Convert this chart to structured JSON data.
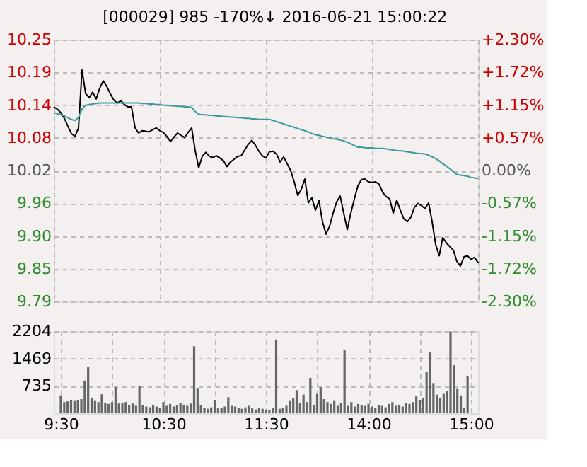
{
  "chart_data": [
    {
      "type": "line",
      "title": "[000029]   985   -170%↓   2016-06-21 15:00:22",
      "grid": true,
      "tick_labels": "y",
      "categories": [
        null,
        null,
        null,
        null,
        null,
        null,
        null,
        null,
        null,
        null,
        null,
        null,
        null,
        null,
        null,
        null,
        null,
        null,
        null,
        null,
        null,
        null,
        null,
        null,
        null,
        null,
        null,
        null,
        null,
        null,
        null,
        null,
        null,
        null,
        null,
        null,
        null,
        null,
        null,
        null,
        null,
        null,
        null,
        null,
        null,
        null,
        null,
        null,
        null,
        null,
        null,
        null,
        null,
        null,
        null,
        null,
        null,
        null,
        null,
        null,
        null,
        null,
        null,
        null,
        null,
        null,
        null,
        null,
        null,
        null,
        null,
        null,
        null,
        null,
        null,
        null,
        null,
        null,
        null,
        null,
        null,
        null,
        null,
        null,
        null,
        null,
        null,
        null,
        null,
        null,
        null,
        null,
        null,
        null,
        null,
        null,
        null,
        null,
        null,
        null,
        null,
        null,
        null,
        null,
        null,
        null,
        null,
        null,
        null,
        null,
        null,
        null,
        null,
        null,
        null,
        null,
        null,
        null,
        null,
        null,
        null
      ],
      "ylim": [
        9.7896,
        10.2504
      ],
      "yticks": [
        {
          "value": 10.2504,
          "label": "10.25"
        },
        {
          "value": 10.1928,
          "label": "10.19"
        },
        {
          "value": 10.1352,
          "label": "10.14"
        },
        {
          "value": 10.0776,
          "label": "10.08"
        },
        {
          "value": 10.02,
          "label": "10.02"
        },
        {
          "value": 9.9624,
          "label": "9.96"
        },
        {
          "value": 9.9048,
          "label": "9.90"
        },
        {
          "value": 9.8472,
          "label": "9.85"
        },
        {
          "value": 9.7896,
          "label": "9.79"
        }
      ],
      "y2lim": [
        -2.3,
        2.3
      ],
      "y2ticks": [
        {
          "value": 2.3,
          "label": "+2.30%"
        },
        {
          "value": 1.725,
          "label": "+1.72%"
        },
        {
          "value": 1.15,
          "label": "+1.15%"
        },
        {
          "value": 0.575,
          "label": "+0.57%"
        },
        {
          "value": 0,
          "label": "0.00%"
        },
        {
          "value": -0.575,
          "label": "-0.57%"
        },
        {
          "value": -1.15,
          "label": "-1.15%"
        },
        {
          "value": -1.725,
          "label": "-1.72%"
        },
        {
          "value": -2.3,
          "label": "-2.30%"
        }
      ],
      "series": [
        {
          "color": "#000000",
          "values": [
            10.132,
            10.128,
            10.122,
            10.112,
            10.098,
            10.085,
            10.08,
            10.095,
            10.197,
            10.156,
            10.148,
            10.158,
            10.146,
            10.165,
            10.178,
            10.168,
            10.155,
            10.144,
            10.139,
            10.143,
            10.136,
            10.132,
            10.132,
            10.095,
            10.086,
            10.09,
            10.089,
            10.088,
            10.092,
            10.095,
            10.09,
            10.087,
            10.08,
            10.071,
            10.079,
            10.086,
            10.082,
            10.078,
            10.087,
            10.095,
            10.055,
            10.025,
            10.045,
            10.052,
            10.045,
            10.043,
            10.046,
            10.042,
            10.037,
            10.027,
            10.035,
            10.04,
            10.045,
            10.046,
            10.056,
            10.066,
            10.073,
            10.065,
            10.054,
            10.046,
            10.042,
            10.053,
            10.054,
            10.049,
            10.035,
            10.044,
            10.032,
            10.02,
            10.0,
            9.976,
            9.987,
            10.005,
            9.963,
            9.972,
            9.95,
            9.967,
            9.93,
            9.908,
            9.922,
            9.945,
            9.965,
            9.975,
            9.945,
            9.916,
            9.945,
            9.97,
            9.993,
            10.004,
            10.005,
            10.0,
            9.999,
            10.0,
            9.996,
            9.982,
            9.974,
            9.97,
            9.945,
            9.968,
            9.95,
            9.935,
            9.93,
            9.938,
            9.955,
            9.962,
            9.958,
            9.953,
            9.963,
            9.93,
            9.89,
            9.87,
            9.902,
            9.893,
            9.886,
            9.88,
            9.86,
            9.852,
            9.868,
            9.87,
            9.864,
            9.867,
            9.858
          ]
        },
        {
          "color": "#3d9a9a",
          "values": [
            10.122,
            10.12,
            10.118,
            10.116,
            10.113,
            10.11,
            10.108,
            10.113,
            10.128,
            10.135,
            10.136,
            10.137,
            10.138,
            10.139,
            10.139,
            10.139,
            10.139,
            10.139,
            10.139,
            10.139,
            10.139,
            10.139,
            10.139,
            10.139,
            10.139,
            10.138,
            10.138,
            10.137,
            10.137,
            10.136,
            10.136,
            10.135,
            10.135,
            10.134,
            10.134,
            10.133,
            10.133,
            10.132,
            10.132,
            10.131,
            10.124,
            10.119,
            10.118,
            10.118,
            10.117,
            10.117,
            10.116,
            10.116,
            10.115,
            10.115,
            10.114,
            10.114,
            10.113,
            10.113,
            10.112,
            10.112,
            10.111,
            10.111,
            10.11,
            10.11,
            10.11,
            10.11,
            10.108,
            10.106,
            10.104,
            10.102,
            10.1,
            10.098,
            10.096,
            10.094,
            10.092,
            10.09,
            10.088,
            10.085,
            10.083,
            10.082,
            10.08,
            10.079,
            10.078,
            10.076,
            10.075,
            10.074,
            10.072,
            10.07,
            10.067,
            10.064,
            10.061,
            10.061,
            10.06,
            10.06,
            10.06,
            10.059,
            10.059,
            10.059,
            10.058,
            10.057,
            10.056,
            10.055,
            10.055,
            10.054,
            10.053,
            10.052,
            10.051,
            10.05,
            10.05,
            10.049,
            10.047,
            10.044,
            10.041,
            10.037,
            10.032,
            10.028,
            10.023,
            10.018,
            10.013,
            10.012,
            10.011,
            10.01,
            10.008,
            10.007,
            10.006
          ]
        }
      ]
    },
    {
      "type": "bar",
      "grid": true,
      "color": "#666666",
      "categories": [
        "9:30",
        null,
        null,
        null,
        null,
        null,
        null,
        null,
        null,
        null,
        null,
        null,
        null,
        null,
        null,
        null,
        null,
        null,
        null,
        null,
        null,
        null,
        null,
        null,
        null,
        null,
        null,
        null,
        null,
        null,
        "10:30",
        null,
        null,
        null,
        null,
        null,
        null,
        null,
        null,
        null,
        null,
        null,
        null,
        null,
        null,
        null,
        null,
        null,
        null,
        null,
        null,
        null,
        null,
        null,
        null,
        null,
        null,
        null,
        null,
        null,
        "11:30",
        null,
        null,
        null,
        null,
        null,
        null,
        null,
        null,
        null,
        null,
        null,
        null,
        null,
        null,
        null,
        null,
        null,
        null,
        null,
        null,
        null,
        null,
        null,
        null,
        null,
        null,
        null,
        null,
        null,
        "14:00",
        null,
        null,
        null,
        null,
        null,
        null,
        null,
        null,
        null,
        null,
        null,
        null,
        null,
        null,
        null,
        null,
        null,
        null,
        null,
        null,
        null,
        null,
        null,
        null,
        null,
        null,
        null,
        null,
        null,
        "15:00"
      ],
      "ylim": [
        0,
        2204
      ],
      "yticks": [
        735,
        1469,
        2204
      ],
      "values": [
        480,
        300,
        320,
        350,
        330,
        360,
        380,
        880,
        1250,
        420,
        330,
        300,
        510,
        280,
        250,
        300,
        700,
        260,
        280,
        300,
        220,
        260,
        200,
        730,
        220,
        180,
        160,
        230,
        180,
        150,
        300,
        200,
        250,
        180,
        220,
        280,
        230,
        200,
        260,
        1800,
        660,
        220,
        150,
        120,
        160,
        360,
        130,
        140,
        180,
        430,
        200,
        180,
        150,
        120,
        160,
        200,
        130,
        100,
        150,
        120,
        100,
        90,
        150,
        1980,
        120,
        150,
        200,
        330,
        420,
        620,
        280,
        500,
        300,
        950,
        220,
        520,
        700,
        380,
        300,
        250,
        330,
        200,
        280,
        1690,
        200,
        300,
        180,
        250,
        220,
        200,
        250,
        180,
        150,
        220,
        200,
        160,
        250,
        300,
        200,
        230,
        180,
        280,
        250,
        300,
        450,
        350,
        420,
        1100,
        1650,
        810,
        500,
        400,
        520,
        600,
        2190,
        1290,
        650,
        480,
        150,
        1000,
        null
      ]
    }
  ]
}
